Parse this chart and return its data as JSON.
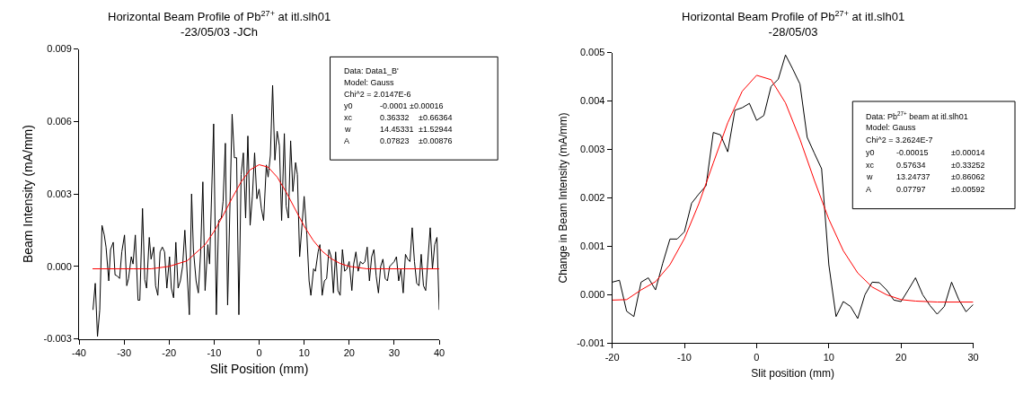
{
  "chart_data": [
    {
      "type": "line",
      "title": "Horizontal Beam Profile of Pb$^{27+}$ at itl.slh01\n-23/05/03 -JCh",
      "xlabel": "Slit Position (mm)",
      "ylabel": "Beam Intensity (mA/mm)",
      "xlim": [
        -40,
        40
      ],
      "xticks": [
        -40,
        -30,
        -20,
        -10,
        0,
        10,
        20,
        30,
        40
      ],
      "ylim": [
        -0.003,
        0.009
      ],
      "yticks": [
        {
          "value": -0.003,
          "label": "-0.003"
        },
        {
          "value": 0,
          "label": "0.000"
        },
        {
          "value": 0.003,
          "label": "0.003"
        },
        {
          "value": 0.006,
          "label": "0.006"
        },
        {
          "value": 0.009,
          "label": "0.009"
        }
      ],
      "series": [
        {
          "color": "#000000",
          "x": [
            -36.9,
            -36.4,
            -35.9,
            -35.4,
            -34.9,
            -34.4,
            -34.0,
            -33.4,
            -33.0,
            -32.4,
            -32.0,
            -31.5,
            -31.0,
            -30.5,
            -29.9,
            -29.4,
            -29.0,
            -28.4,
            -28.0,
            -27.5,
            -26.9,
            -26.5,
            -25.9,
            -25.4,
            -25.0,
            -24.4,
            -24.0,
            -23.4,
            -23.0,
            -22.5,
            -22.0,
            -21.5,
            -21.0,
            -20.5,
            -19.9,
            -19.5,
            -19.0,
            -18.5,
            -18.0,
            -17.5,
            -17.0,
            -16.5,
            -15.5,
            -15.0,
            -14.6,
            -14.0,
            -13.5,
            -13.0,
            -12.5,
            -12.0,
            -11.4,
            -11.0,
            -10.1,
            -9.5,
            -9.0,
            -8.4,
            -8.0,
            -7.5,
            -7.0,
            -6.0,
            -5.5,
            -5.0,
            -4.5,
            -4.0,
            -3.5,
            -3.0,
            -2.5,
            -2.0,
            -1.5,
            -1.0,
            -0.5,
            0.0,
            0.5,
            1.0,
            1.6,
            2.0,
            2.5,
            3.0,
            3.5,
            4.0,
            4.5,
            5.0,
            5.6,
            6.0,
            6.5,
            7.0,
            7.5,
            8.1,
            8.5,
            9.0,
            10.0,
            10.6,
            11.1,
            11.5,
            12.1,
            12.5,
            13.1,
            13.5,
            14.0,
            14.5,
            15.0,
            15.5,
            16.0,
            16.5,
            17.0,
            17.5,
            18.0,
            18.5,
            19.0,
            19.5,
            20.0,
            20.6,
            21.0,
            21.5,
            22.0,
            22.5,
            23.0,
            23.5,
            24.0,
            24.5,
            25.0,
            25.5,
            26.0,
            26.5,
            27.0,
            27.5,
            28.0,
            28.5,
            29.0,
            29.5,
            30.0,
            30.5,
            31.0,
            31.5,
            32.0,
            32.5,
            33.0,
            33.5,
            34.0,
            34.5,
            35.0,
            35.5,
            36.0,
            36.5,
            37.0,
            38.0,
            38.5,
            39.0,
            39.5,
            40.0
          ],
          "values": [
            -0.0018,
            -0.0007,
            -0.0029,
            -0.0018,
            0.0017,
            0.0013,
            0.0008,
            -0.0006,
            0.0007,
            0.001,
            -0.00035,
            -0.0004,
            -0.0005,
            0.0006,
            0.0013,
            -0.0008,
            -0.0005,
            0.0004,
            0.0001,
            0.0013,
            -0.0014,
            -0.0014,
            0.0024,
            -0.00055,
            -0.0009,
            0.0012,
            0.0003,
            0.0008,
            -0.0008,
            -0.0012,
            0.0006,
            0.0008,
            0.0006,
            -0.0009,
            0.0004,
            -0.0009,
            -0.0013,
            0.001,
            -0.0009,
            -0.0006,
            0.0,
            0.0015,
            -0.002,
            0.003,
            0.0007,
            -0.0006,
            -0.0011,
            0.00055,
            0.0035,
            -0.001,
            0.0009,
            0.0001,
            0.0059,
            -0.002,
            0.0019,
            0.002,
            0.0027,
            0.0051,
            -0.0016,
            0.0063,
            0.0045,
            0.0045,
            -0.002,
            0.0038,
            0.0047,
            0.002,
            0.0054,
            0.0017,
            0.0029,
            0.0047,
            0.0028,
            0.0032,
            0.0024,
            0.0019,
            0.0042,
            0.0037,
            0.0046,
            0.0075,
            0.0044,
            0.0056,
            0.005,
            0.0019,
            0.0055,
            0.0025,
            0.002,
            0.0052,
            0.0031,
            0.0043,
            0.0038,
            0.0004,
            0.0029,
            0.0013,
            -0.0006,
            -0.0012,
            -0.0001,
            -0.0002,
            0.0006,
            0.0009,
            -0.0012,
            -0.0006,
            -0.0005,
            0.0007,
            0.0004,
            -0.0011,
            0.0006,
            -0.001,
            -0.0012,
            0.0007,
            -0.0002,
            -0.0001,
            0.0002,
            -0.001,
            0.0001,
            0.0006,
            -0.0002,
            0.0002,
            0.0001,
            0.0002,
            0.0008,
            -0.0006,
            0.0004,
            0.0007,
            -0.0004,
            -0.0011,
            0.0,
            0.0003,
            -0.0005,
            -0.0006,
            0.0,
            0.0001,
            0.0002,
            0.0004,
            -0.0006,
            -0.0001,
            -0.0011,
            0.0005,
            0.0003,
            0.0002,
            0.0016,
            0.0002,
            -0.0007,
            -0.0008,
            0.0005,
            -0.0008,
            -0.001,
            0.0016,
            -0.0001,
            0.0009,
            0.0012,
            -0.0018
          ]
        },
        {
          "color": "#ff0000",
          "x": [
            -37,
            -28,
            -24,
            -20,
            -16,
            -12,
            -10,
            -8,
            -6,
            -4,
            -2,
            0,
            2,
            4,
            6,
            8,
            10,
            12,
            14,
            16,
            18,
            20,
            24,
            28,
            40
          ],
          "values": [
            -0.0001,
            -0.0001,
            -0.0001,
            0.0,
            0.00023,
            0.0009,
            0.00145,
            0.00211,
            0.00283,
            0.0035,
            0.004,
            0.00421,
            0.00411,
            0.0037,
            0.00308,
            0.00237,
            0.00167,
            0.00108,
            0.00063,
            0.00032,
            0.00012,
            0.0,
            -0.0001,
            -0.0001,
            -0.0001
          ]
        }
      ],
      "annotations": [
        "Data: Data1_B'",
        "Model: Gauss",
        "Chi^2 = 2.0147E-6",
        "y0\t-0.0001 ±0.00016",
        "xc\t0.36332\t±0.66364",
        "w\t14.45331\t±1.52944",
        "A\t0.07823\t±0.00876"
      ]
    },
    {
      "type": "line",
      "title": "Horizontal Beam Profile of Pb$^{27+}$ at itl.slh01\n-28/05/03",
      "xlabel": "Slit position (mm)",
      "ylabel": "Change in Beam Intensity (mA/mm)",
      "xlim": [
        -20,
        30
      ],
      "xticks": [
        -20,
        -10,
        0,
        10,
        20,
        30
      ],
      "ylim": [
        -0.001,
        0.005
      ],
      "yticks": [
        {
          "value": -0.001,
          "label": "-0.001"
        },
        {
          "value": 0,
          "label": "0.000"
        },
        {
          "value": 0.001,
          "label": "0.001"
        },
        {
          "value": 0.002,
          "label": "0.002"
        },
        {
          "value": 0.003,
          "label": "0.003"
        },
        {
          "value": 0.004,
          "label": "0.004"
        },
        {
          "value": 0.005,
          "label": "0.005"
        }
      ],
      "series": [
        {
          "color": "#000000",
          "x": [
            -20,
            -19,
            -18,
            -17,
            -16,
            -15,
            -14,
            -13,
            -12,
            -11,
            -10,
            -9,
            -8,
            -7,
            -6,
            -5,
            -4,
            -3,
            -2,
            -1,
            0,
            1,
            2,
            3,
            4,
            5,
            6,
            7,
            8,
            9,
            10,
            11,
            12,
            13,
            14,
            15,
            16,
            17,
            18,
            19,
            20,
            21,
            22,
            23,
            24,
            25,
            26,
            27,
            28,
            29,
            30
          ],
          "values": [
            0.00026,
            0.0003,
            -0.00034,
            -0.00045,
            0.00026,
            0.00035,
            0.0001,
            0.00065,
            0.00115,
            0.00115,
            0.0013,
            0.00189,
            0.00208,
            0.00225,
            0.00335,
            0.0033,
            0.00295,
            0.00381,
            0.00386,
            0.00395,
            0.0036,
            0.0037,
            0.0043,
            0.00445,
            0.00495,
            0.00466,
            0.00435,
            0.00325,
            0.00292,
            0.0026,
            0.00062,
            -0.00045,
            -0.00014,
            -0.00024,
            -0.00049,
            0.0,
            0.00026,
            0.00025,
            0.0001,
            -0.00011,
            -0.00014,
            0.0001,
            0.00035,
            0.0,
            -0.00022,
            -0.0004,
            -0.00024,
            0.00026,
            -0.0001,
            -0.00035,
            -0.0002
          ]
        },
        {
          "color": "#ff0000",
          "x": [
            -20,
            -18,
            -16,
            -14,
            -12,
            -10,
            -8,
            -6,
            -4,
            -2,
            0,
            2,
            4,
            6,
            8,
            10,
            12,
            14,
            16,
            18,
            20,
            22,
            25,
            30
          ],
          "values": [
            -0.00011,
            -0.0001,
            0.0001,
            0.00027,
            0.00062,
            0.00116,
            0.00188,
            0.00272,
            0.00355,
            0.0042,
            0.00453,
            0.00444,
            0.00396,
            0.00321,
            0.00236,
            0.00156,
            0.00091,
            0.00045,
            0.00016,
            0.0,
            -0.0001,
            -0.00013,
            -0.00015,
            -0.00015
          ]
        }
      ],
      "annotations": [
        "Data: Pb$^{27+}$ beam at itl.slh01",
        "Model: Gauss",
        "Chi^2 = 3.2624E-7",
        "y0\t-0.00015\t±0.00014",
        "xc\t0.57634\t±0.33252",
        "w\t13.24737\t±0.86062",
        "A\t0.07797\t±0.00592"
      ]
    }
  ]
}
